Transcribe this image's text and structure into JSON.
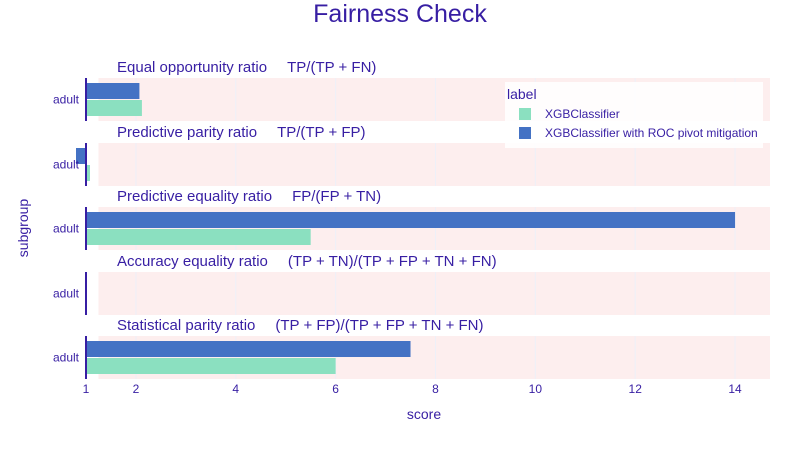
{
  "chart_data": {
    "type": "bar",
    "orientation": "horizontal",
    "title": "Fairness Check",
    "xlabel": "score",
    "ylabel": "subgroup",
    "xlim": [
      0.88,
      14.7
    ],
    "xticks": [
      1,
      2,
      4,
      6,
      8,
      10,
      12,
      14
    ],
    "legend": {
      "title": "label",
      "position": "top-right",
      "entries": [
        "XGBClassifier",
        "XGBClassifier with ROC pivot mitigation"
      ]
    },
    "series": [
      {
        "name": "XGBClassifier",
        "color": "#8be0c0"
      },
      {
        "name": "XGBClassifier with ROC pivot mitigation",
        "color": "#4472c4"
      }
    ],
    "panels": [
      {
        "name": "Equal opportunity ratio",
        "formula": "TP/(TP + FN)",
        "category": "adult",
        "values": [
          2.12,
          2.07
        ],
        "acceptable_range": [
          0.8,
          1.25
        ]
      },
      {
        "name": "Predictive parity ratio",
        "formula": "TP/(TP + FP)",
        "category": "adult",
        "values": [
          1.08,
          0.8
        ],
        "acceptable_range": [
          0.8,
          1.25
        ]
      },
      {
        "name": "Predictive equality ratio",
        "formula": "FP/(FP + TN)",
        "category": "adult",
        "values": [
          5.5,
          14.0
        ],
        "acceptable_range": [
          0.8,
          1.25
        ]
      },
      {
        "name": "Accuracy equality ratio",
        "formula": "(TP + TN)/(TP + FP + TN + FN)",
        "category": "adult",
        "values": [
          1.0,
          0.98
        ],
        "acceptable_range": [
          0.8,
          1.25
        ]
      },
      {
        "name": "Statistical parity ratio",
        "formula": "(TP + FP)/(TP + FP + TN + FN)",
        "category": "adult",
        "values": [
          6.0,
          7.5
        ],
        "acceptable_range": [
          0.8,
          1.25
        ]
      }
    ],
    "colors": {
      "title": "#371ea3",
      "text": "#371ea3",
      "red_zone": "#fdeeee",
      "baseline": "#371ea3",
      "grid": "#eef0f8"
    }
  }
}
